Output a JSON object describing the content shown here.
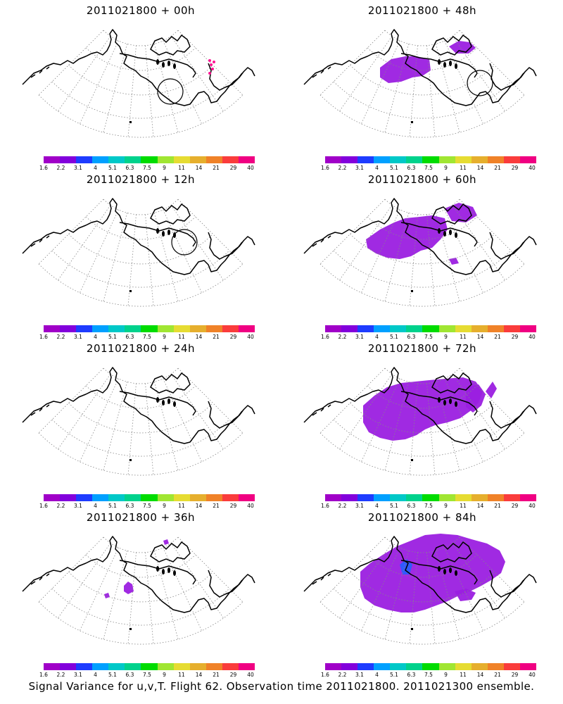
{
  "panels": [
    {
      "id": "p00",
      "title": "2011021800 + 00h",
      "blob": "none",
      "circle": true,
      "pink_dots": true
    },
    {
      "id": "p12",
      "title": "2011021800 + 12h",
      "blob": "none",
      "circle": true,
      "pink_dots": false
    },
    {
      "id": "p24",
      "title": "2011021800 + 24h",
      "blob": "none",
      "circle": false,
      "pink_dots": false
    },
    {
      "id": "p36",
      "title": "2011021800 + 36h",
      "blob": "tiny",
      "circle": false,
      "pink_dots": false
    },
    {
      "id": "p48",
      "title": "2011021800 + 48h",
      "blob": "small",
      "circle": true,
      "pink_dots": false
    },
    {
      "id": "p60",
      "title": "2011021800 + 60h",
      "blob": "medium",
      "circle": false,
      "pink_dots": false
    },
    {
      "id": "p72",
      "title": "2011021800 + 72h",
      "blob": "large",
      "circle": false,
      "pink_dots": false
    },
    {
      "id": "p84",
      "title": "2011021800 + 84h",
      "blob": "xlarge",
      "circle": false,
      "pink_dots": false
    }
  ],
  "colorbar": {
    "colors": [
      "#a000c8",
      "#8200dc",
      "#1e3cff",
      "#00a0ff",
      "#00c8c8",
      "#00d28c",
      "#00dc00",
      "#a0e632",
      "#e6dc32",
      "#e6af2d",
      "#f08228",
      "#fa3c3c",
      "#f00082"
    ],
    "labels": [
      "1.6",
      "2.2",
      "3.1",
      "4",
      "5.1",
      "6.3",
      "7.5",
      "9",
      "11",
      "14",
      "21",
      "29",
      "40"
    ]
  },
  "footer": "Signal Variance for u,v,T. Flight 62. Observation time 2011021800. 2011021300 ensemble.",
  "colors": {
    "blob_main": "#9b1fe0",
    "blob_blue": "#2a5cff",
    "pink": "#ff1493",
    "coast": "#000000",
    "grid": "#888888"
  }
}
